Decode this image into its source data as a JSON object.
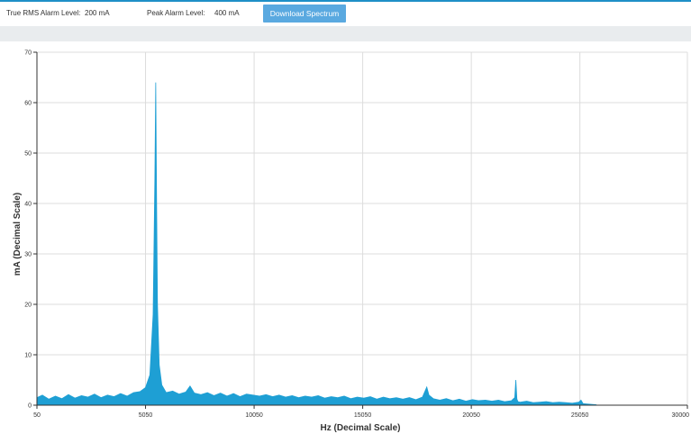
{
  "toolbar": {
    "rms_label": "True RMS Alarm Level:",
    "rms_value": "200 mA",
    "peak_label": "Peak Alarm Level:",
    "peak_value": "400 mA",
    "download_label": "Download Spectrum"
  },
  "colors": {
    "accent": "#1f8fc7",
    "button": "#5aa9e0",
    "series": "#1e9fd4"
  },
  "chart_data": {
    "type": "area",
    "xlabel": "Hz (Decimal Scale)",
    "ylabel": "mA (Decimal Scale)",
    "xlim": [
      50,
      30000
    ],
    "ylim": [
      0,
      70
    ],
    "x_ticks": [
      50,
      5050,
      10050,
      15050,
      20050,
      25050,
      30000
    ],
    "x_tick_labels": [
      "50",
      "5050",
      "10050",
      "15050",
      "20050",
      "25050",
      "30000"
    ],
    "y_ticks": [
      0,
      10,
      20,
      30,
      40,
      50,
      60,
      70
    ],
    "grid": {
      "vertical": true,
      "horizontal": true
    },
    "series": [
      {
        "x": [
          50,
          300,
          600,
          900,
          1200,
          1500,
          1800,
          2100,
          2400,
          2700,
          3000,
          3300,
          3600,
          3900,
          4200,
          4500,
          4800,
          5050,
          5250,
          5400,
          5480,
          5520,
          5560,
          5600,
          5680,
          5800,
          6000,
          6300,
          6600,
          6900,
          7100,
          7300,
          7600,
          7900,
          8200,
          8500,
          8800,
          9100,
          9400,
          9700,
          10000,
          10300,
          10600,
          10900,
          11200,
          11500,
          11800,
          12100,
          12400,
          12700,
          13000,
          13300,
          13600,
          13900,
          14200,
          14500,
          14800,
          15100,
          15400,
          15700,
          16000,
          16300,
          16600,
          16900,
          17200,
          17500,
          17800,
          18000,
          18100,
          18300,
          18600,
          18900,
          19200,
          19500,
          19800,
          20100,
          20400,
          20700,
          21000,
          21300,
          21600,
          21900,
          22050,
          22100,
          22150,
          22200,
          22300,
          22600,
          22900,
          23200,
          23500,
          23800,
          24100,
          24400,
          24700,
          25000,
          25100,
          25200,
          25500,
          25800
        ],
        "values": [
          1.5,
          2.0,
          1.2,
          1.8,
          1.3,
          2.1,
          1.4,
          1.9,
          1.6,
          2.2,
          1.5,
          2.0,
          1.7,
          2.3,
          1.8,
          2.5,
          2.7,
          3.5,
          6.0,
          18.0,
          45.0,
          64.0,
          40.0,
          20.0,
          8.0,
          4.0,
          2.5,
          2.8,
          2.2,
          2.6,
          3.8,
          2.4,
          2.1,
          2.5,
          1.9,
          2.4,
          1.8,
          2.3,
          1.7,
          2.2,
          2.0,
          1.8,
          2.1,
          1.7,
          2.0,
          1.6,
          1.9,
          1.5,
          1.8,
          1.6,
          1.9,
          1.4,
          1.7,
          1.5,
          1.8,
          1.3,
          1.6,
          1.4,
          1.7,
          1.2,
          1.6,
          1.3,
          1.5,
          1.2,
          1.5,
          1.1,
          1.6,
          3.6,
          2.0,
          1.3,
          1.0,
          1.3,
          0.9,
          1.2,
          0.8,
          1.1,
          0.9,
          1.0,
          0.8,
          1.0,
          0.7,
          0.9,
          1.5,
          5.0,
          1.2,
          0.7,
          0.6,
          0.8,
          0.5,
          0.6,
          0.7,
          0.5,
          0.6,
          0.5,
          0.4,
          0.6,
          1.0,
          0.3,
          0.2,
          0.1
        ]
      }
    ]
  }
}
